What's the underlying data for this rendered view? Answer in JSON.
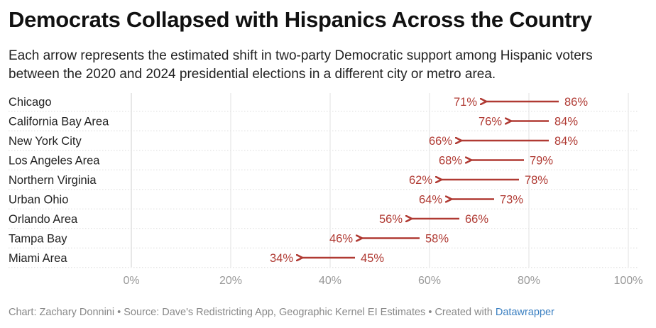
{
  "title": "Democrats Collapsed with Hispanics Across the Country",
  "subtitle": "Each arrow represents the estimated shift in two-party Democratic support among Hispanic voters between the 2020 and 2024 presidential elections in a different city or metro area.",
  "footer": {
    "text": "Chart: Zachary Donnini • Source: Dave's Redistricting App, Geographic Kernel EI Estimates • Created with ",
    "link": "Datawrapper"
  },
  "colors": {
    "arrow": "#b03a33",
    "grid": "#e2e2e2",
    "axis_text": "#999999",
    "link": "#3a7fc1"
  },
  "chart_data": {
    "type": "arrow",
    "series": [
      {
        "name": "2020"
      },
      {
        "name": "2024"
      }
    ],
    "categories": [
      "Chicago",
      "California Bay Area",
      "New York City",
      "Los Angeles Area",
      "Northern Virginia",
      "Urban Ohio",
      "Orlando Area",
      "Tampa Bay",
      "Miami Area"
    ],
    "values_2020": [
      86,
      84,
      84,
      79,
      78,
      73,
      66,
      58,
      45
    ],
    "values_2024": [
      71,
      76,
      66,
      68,
      62,
      64,
      56,
      46,
      34
    ],
    "labels_2020": [
      "86%",
      "84%",
      "84%",
      "79%",
      "78%",
      "73%",
      "66%",
      "58%",
      "45%"
    ],
    "labels_2024": [
      "71%",
      "76%",
      "66%",
      "68%",
      "62%",
      "64%",
      "56%",
      "46%",
      "34%"
    ],
    "xlim": [
      0,
      100
    ],
    "xticks": [
      0,
      20,
      40,
      60,
      80,
      100
    ],
    "xtick_labels": [
      "0%",
      "20%",
      "40%",
      "60%",
      "80%",
      "100%"
    ],
    "unit": "%",
    "grid": true
  }
}
